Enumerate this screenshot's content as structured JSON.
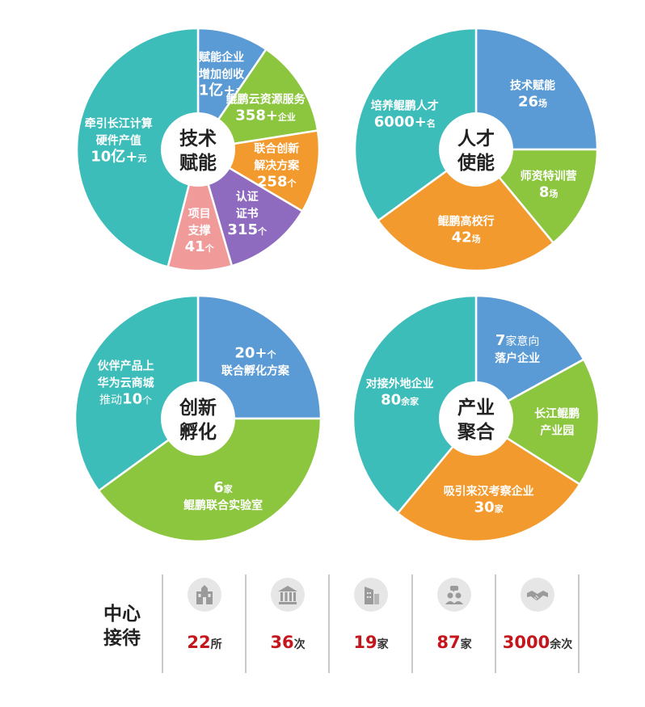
{
  "chart_data": [
    {
      "type": "pie",
      "center_label": [
        "技术",
        "赋能"
      ],
      "slices": [
        {
          "lines": [
            "赋能企业",
            "增加创收"
          ],
          "num": "1亿+",
          "unit": "元",
          "color": "#5b9bd5",
          "share": 0.095
        },
        {
          "lines": [
            "鲲鹏云资源服务"
          ],
          "num": "358+",
          "unit": "企业",
          "color": "#8cc63f",
          "share": 0.13
        },
        {
          "lines": [
            "联合创新",
            "解决方案"
          ],
          "num": "258",
          "unit": "个",
          "color": "#f39a2e",
          "share": 0.11
        },
        {
          "lines": [
            "认证",
            "证书"
          ],
          "num": "315",
          "unit": "个",
          "color": "#8e6bbf",
          "share": 0.12
        },
        {
          "lines": [
            "项目",
            "支撑"
          ],
          "num": "41",
          "unit": "个",
          "color": "#f19a9a",
          "share": 0.085
        },
        {
          "lines": [
            "牵引长江计算",
            "硬件产值"
          ],
          "num": "10亿+",
          "unit": "元",
          "color": "#3dbdba",
          "share": 0.46
        }
      ]
    },
    {
      "type": "pie",
      "center_label": [
        "人才",
        "使能"
      ],
      "slices": [
        {
          "lines": [
            "技术赋能"
          ],
          "num": "26",
          "unit": "场",
          "color": "#5b9bd5",
          "share": 0.25
        },
        {
          "lines": [
            "师资特训营"
          ],
          "num": "8",
          "unit": "场",
          "color": "#8cc63f",
          "share": 0.14
        },
        {
          "lines": [
            "鲲鹏高校行"
          ],
          "num": "42",
          "unit": "场",
          "color": "#f39a2e",
          "share": 0.26
        },
        {
          "lines": [
            "培养鲲鹏人才"
          ],
          "num": "6000+",
          "unit": "名",
          "color": "#3dbdba",
          "share": 0.35
        }
      ]
    },
    {
      "type": "pie",
      "center_label": [
        "创新",
        "孵化"
      ],
      "slices": [
        {
          "lines": [
            "联合孵化方案"
          ],
          "num": "20+",
          "unit": "个",
          "color": "#5b9bd5",
          "share": 0.25,
          "num_first": true
        },
        {
          "lines": [
            "鲲鹏联合实验室"
          ],
          "num": "6",
          "unit": "家",
          "color": "#8cc63f",
          "share": 0.4,
          "num_first": true
        },
        {
          "lines": [
            "伙伴产品上",
            "华为云商城"
          ],
          "prefix": "推动",
          "num": "10",
          "unit": "个",
          "color": "#3dbdba",
          "share": 0.35
        }
      ]
    },
    {
      "type": "pie",
      "center_label": [
        "产业",
        "聚合"
      ],
      "slices": [
        {
          "lines": [
            "落户企业"
          ],
          "prefix_num": "7",
          "prefix_unit": "家意向",
          "color": "#5b9bd5",
          "share": 0.17
        },
        {
          "lines": [
            "长江鲲鹏",
            "产业园"
          ],
          "color": "#8cc63f",
          "share": 0.17
        },
        {
          "lines": [
            "吸引来汉考察企业"
          ],
          "num": "30",
          "unit": "家",
          "color": "#f39a2e",
          "share": 0.27
        },
        {
          "lines": [
            "对接外地企业"
          ],
          "num": "80",
          "unit": "余家",
          "color": "#3dbdba",
          "share": 0.39
        }
      ]
    }
  ],
  "reception": {
    "title": [
      "中心",
      "接待"
    ],
    "items": [
      {
        "icon": "university-building-icon",
        "num": "22",
        "unit": "所"
      },
      {
        "icon": "government-building-icon",
        "num": "36",
        "unit": "次"
      },
      {
        "icon": "office-tower-icon",
        "num": "19",
        "unit": "家"
      },
      {
        "icon": "people-chat-icon",
        "num": "87",
        "unit": "家"
      },
      {
        "icon": "handshake-icon",
        "num": "3000",
        "unit": "余次"
      }
    ]
  }
}
